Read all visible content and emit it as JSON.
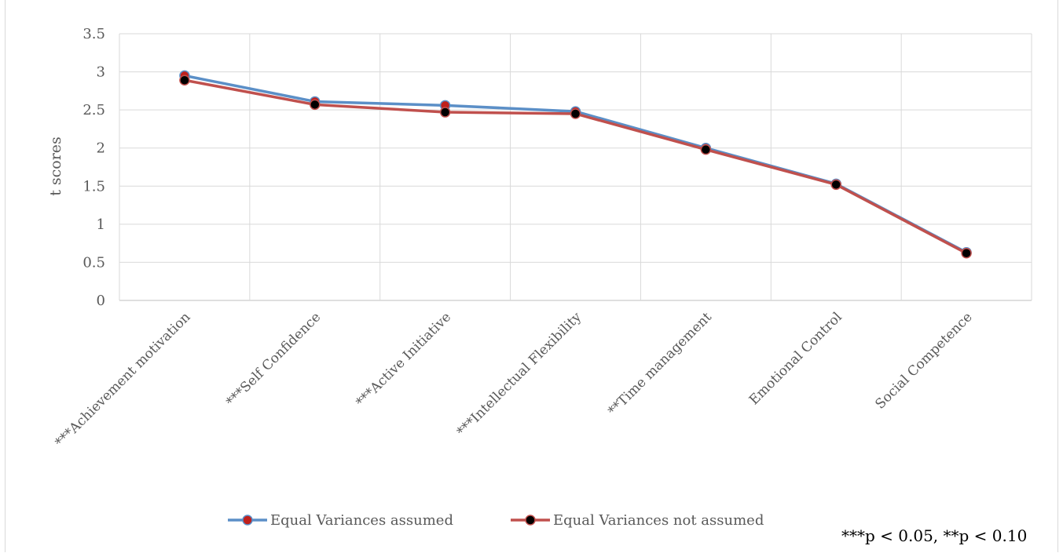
{
  "chart_data": {
    "type": "line",
    "title": "",
    "xlabel": "",
    "ylabel": "t scores",
    "ylim": [
      0,
      3.5
    ],
    "yticks": [
      "0",
      "0.5",
      "1",
      "1.5",
      "2",
      "2.5",
      "3",
      "3.5"
    ],
    "grid": true,
    "legend_position": "bottom",
    "categories": [
      "***Achievement motivation",
      "***Self Confidence",
      "***Active Initiative",
      "***Intellectual Flexibility",
      "**Time management",
      "Emotional Control",
      "Social Competence"
    ],
    "series": [
      {
        "name": "Equal Variances assumed",
        "line_color": "#5b8fc7",
        "marker_color": "#c0201c",
        "values": [
          2.95,
          2.61,
          2.56,
          2.48,
          2.0,
          1.53,
          0.63
        ]
      },
      {
        "name": "Equal Variances not assumed",
        "line_color": "#c0504d",
        "marker_color": "#000000",
        "values": [
          2.89,
          2.57,
          2.47,
          2.45,
          1.98,
          1.52,
          0.62
        ]
      }
    ],
    "annotation": "***p < 0.05, **p < 0.10"
  }
}
